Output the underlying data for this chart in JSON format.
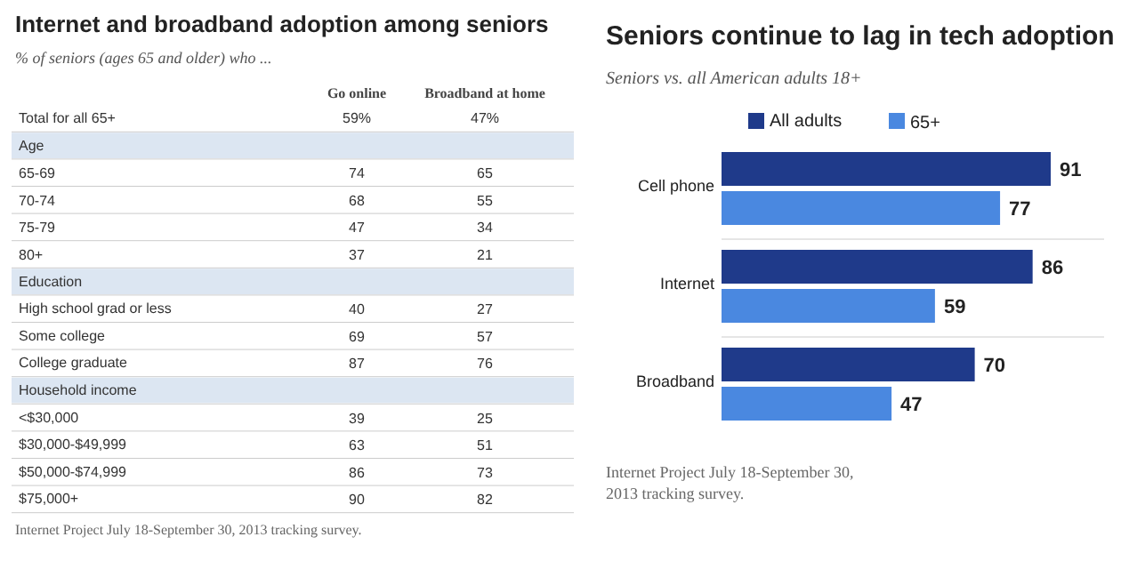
{
  "chart_data": [
    {
      "type": "other",
      "title": "Internet and broadband adoption among seniors",
      "subtitle": "% of seniors (ages 65 and older) who ...",
      "categories": [
        "Total for all 65+",
        "Age",
        "65-69",
        "70-74",
        "75-79",
        "80+",
        "Education",
        "High school grad or less",
        "Some college",
        "College graduate",
        "Household income",
        "<$30,000",
        "$30,000-$49,999",
        "$50,000-$74,999",
        "$75,000+"
      ],
      "series": [
        {
          "name": "Go online",
          "values": [
            59,
            null,
            74,
            68,
            47,
            37,
            null,
            40,
            69,
            87,
            null,
            39,
            63,
            86,
            90
          ],
          "value_labels": [
            "59%",
            null,
            "74",
            "68",
            "47",
            "37",
            null,
            "40",
            "69",
            "87",
            null,
            "39",
            "63",
            "86",
            "90"
          ]
        },
        {
          "name": "Broadband at home",
          "values": [
            47,
            null,
            65,
            55,
            34,
            21,
            null,
            27,
            57,
            76,
            null,
            25,
            51,
            73,
            82
          ],
          "value_labels": [
            "47%",
            null,
            "65",
            "55",
            "34",
            "21",
            null,
            "27",
            "57",
            "76",
            null,
            "25",
            "51",
            "73",
            "82"
          ]
        }
      ],
      "annotations": [
        "Internet Project July 18-September 30, 2013 tracking survey."
      ]
    },
    {
      "type": "bar",
      "orientation": "horizontal",
      "title": "Seniors continue to lag in tech adoption",
      "subtitle": "Seniors vs. all American adults 18+",
      "categories": [
        "Cell phone",
        "Internet",
        "Broadband"
      ],
      "series": [
        {
          "name": "All adults",
          "color": "#1f3a8a",
          "values": [
            91,
            86,
            70
          ]
        },
        {
          "name": "65+",
          "color": "#4a88e0",
          "values": [
            77,
            59,
            47
          ]
        }
      ],
      "data_labels": true,
      "legend": "top",
      "grid": false,
      "annotations": [
        "Internet Project July 18-September 30,",
        "2013 tracking survey."
      ]
    }
  ]
}
